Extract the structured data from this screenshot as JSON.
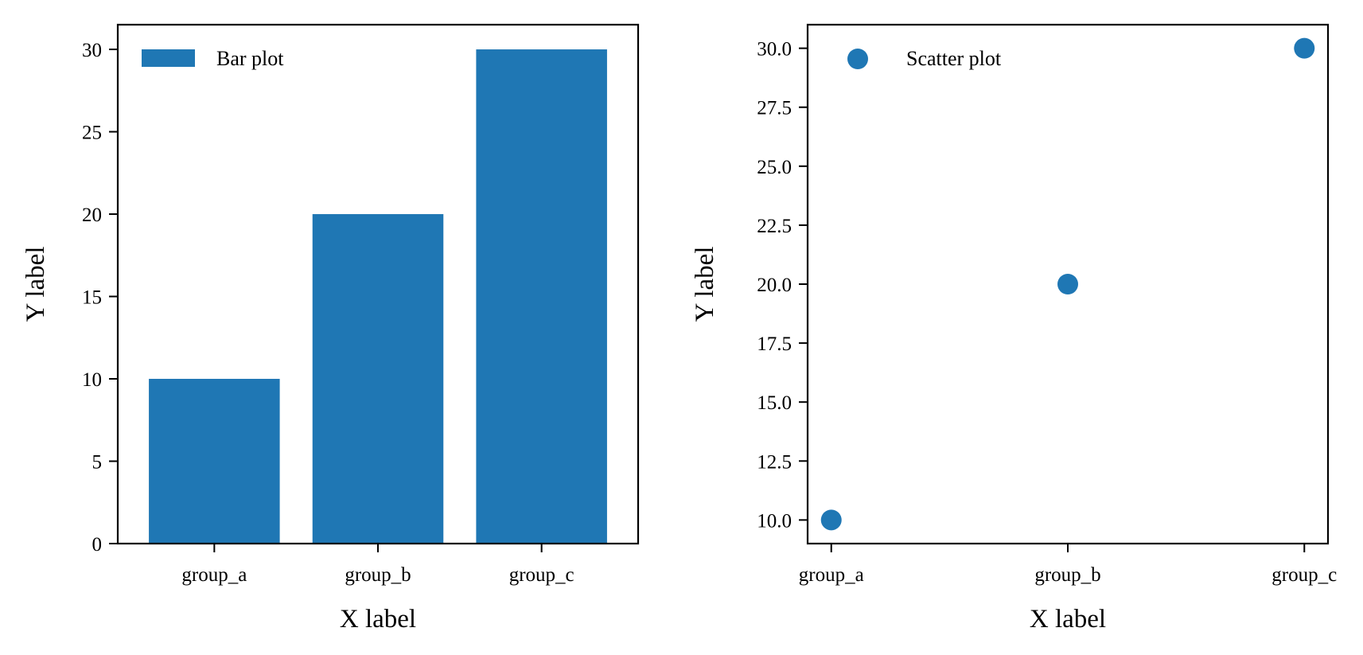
{
  "chart_data": [
    {
      "type": "bar",
      "categories": [
        "group_a",
        "group_b",
        "group_c"
      ],
      "values": [
        10,
        20,
        30
      ],
      "xlabel": "X label",
      "ylabel": "Y label",
      "ylim": [
        0,
        31.5
      ],
      "yticks": [
        0,
        5,
        10,
        15,
        20,
        25,
        30
      ],
      "ytick_labels": [
        "0",
        "5",
        "10",
        "15",
        "20",
        "25",
        "30"
      ],
      "legend": {
        "label": "Bar plot",
        "location": "upper-left"
      },
      "color": "#1f77b4",
      "grid": false
    },
    {
      "type": "scatter",
      "categories": [
        "group_a",
        "group_b",
        "group_c"
      ],
      "values": [
        10,
        20,
        30
      ],
      "xlabel": "X label",
      "ylabel": "Y label",
      "ylim": [
        9,
        31
      ],
      "yticks": [
        10.0,
        12.5,
        15.0,
        17.5,
        20.0,
        22.5,
        25.0,
        27.5,
        30.0
      ],
      "ytick_labels": [
        "10.0",
        "12.5",
        "15.0",
        "17.5",
        "20.0",
        "22.5",
        "25.0",
        "27.5",
        "30.0"
      ],
      "legend": {
        "label": "Scatter plot",
        "location": "upper-left"
      },
      "color": "#1f77b4",
      "grid": false
    }
  ]
}
